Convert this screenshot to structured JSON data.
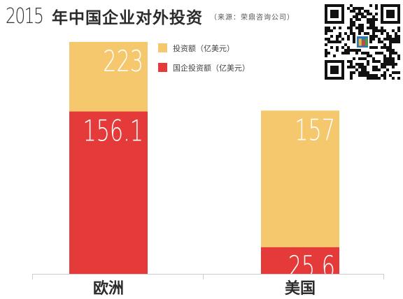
{
  "title": {
    "year": "2015",
    "main": "年中国企业对外投资",
    "source": "（来源：荣鼎咨询公司）"
  },
  "colors": {
    "total": "#f6c86e",
    "soe": "#e53a3a",
    "axis": "#cccccc",
    "text": "#2b2b2b"
  },
  "chart_data": {
    "type": "bar",
    "stacked": false,
    "categories": [
      "欧洲",
      "美国"
    ],
    "series": [
      {
        "name": "投资额（亿美元）",
        "values": [
          223,
          157
        ]
      },
      {
        "name": "国企投资额（亿美元）",
        "values": [
          156.1,
          25.6
        ]
      }
    ],
    "data_labels": [
      [
        "223",
        "157"
      ],
      [
        "156.1",
        "25.6"
      ]
    ],
    "ylim": [
      0,
      223
    ],
    "legend": "top-center",
    "grid": false
  },
  "qr_icon": "qr-code-icon"
}
